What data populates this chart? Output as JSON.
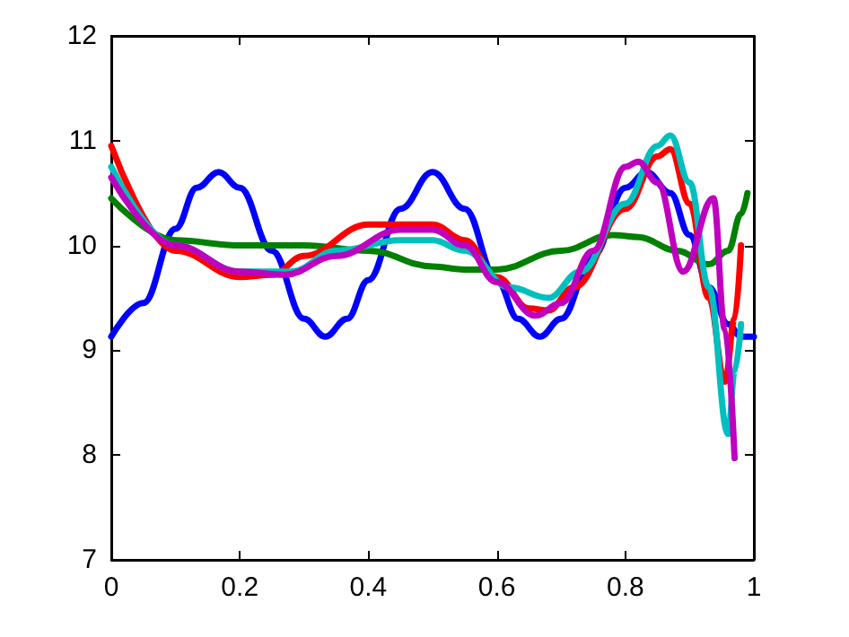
{
  "chart_data": {
    "type": "line",
    "xlim": [
      0,
      1
    ],
    "ylim": [
      7,
      12
    ],
    "xticks": [
      0,
      0.2,
      0.4,
      0.6,
      0.8,
      1
    ],
    "yticks": [
      7,
      8,
      9,
      10,
      11,
      12
    ],
    "grid": false,
    "marker": "none",
    "line_style": "solid",
    "series": [
      {
        "color": "#0000ff",
        "x": [
          0,
          0.05,
          0.1,
          0.133,
          0.167,
          0.2,
          0.25,
          0.3,
          0.333,
          0.367,
          0.4,
          0.45,
          0.5,
          0.55,
          0.6,
          0.633,
          0.667,
          0.7,
          0.75,
          0.8,
          0.833,
          0.87,
          0.9,
          0.93,
          0.96,
          0.98,
          1
        ],
        "values": [
          9.13,
          9.45,
          10.16,
          10.55,
          10.7,
          10.55,
          9.95,
          9.3,
          9.13,
          9.3,
          9.67,
          10.35,
          10.7,
          10.35,
          9.67,
          9.3,
          9.13,
          9.3,
          9.9,
          10.55,
          10.7,
          10.5,
          10.1,
          9.6,
          9.25,
          9.13,
          9.13
        ]
      },
      {
        "color": "#008000",
        "x": [
          0,
          0.1,
          0.2,
          0.3,
          0.4,
          0.5,
          0.55,
          0.6,
          0.7,
          0.78,
          0.82,
          0.88,
          0.93,
          0.96,
          0.98,
          0.99
        ],
        "values": [
          10.45,
          10.05,
          10.0,
          10.0,
          9.95,
          9.8,
          9.77,
          9.77,
          9.95,
          10.1,
          10.08,
          9.95,
          9.82,
          9.95,
          10.3,
          10.5
        ]
      },
      {
        "color": "#ff0000",
        "x": [
          0,
          0.1,
          0.2,
          0.25,
          0.3,
          0.4,
          0.5,
          0.55,
          0.6,
          0.65,
          0.68,
          0.72,
          0.8,
          0.85,
          0.87,
          0.9,
          0.93,
          0.955,
          0.97,
          0.98
        ],
        "values": [
          10.95,
          9.95,
          9.7,
          9.72,
          9.9,
          10.2,
          10.2,
          10.05,
          9.7,
          9.4,
          9.38,
          9.6,
          10.35,
          10.85,
          10.92,
          10.4,
          9.5,
          8.7,
          9.3,
          10.0
        ]
      },
      {
        "color": "#00bfbf",
        "x": [
          0,
          0.1,
          0.2,
          0.28,
          0.35,
          0.45,
          0.5,
          0.55,
          0.62,
          0.68,
          0.73,
          0.8,
          0.85,
          0.87,
          0.9,
          0.93,
          0.96,
          0.97,
          0.98
        ],
        "values": [
          10.75,
          10.0,
          9.75,
          9.75,
          9.95,
          10.05,
          10.05,
          9.95,
          9.6,
          9.5,
          9.75,
          10.4,
          10.95,
          11.05,
          10.6,
          9.6,
          8.2,
          8.8,
          9.25
        ]
      },
      {
        "color": "#bf00bf",
        "x": [
          0,
          0.1,
          0.2,
          0.27,
          0.35,
          0.45,
          0.5,
          0.55,
          0.6,
          0.66,
          0.7,
          0.75,
          0.8,
          0.82,
          0.85,
          0.89,
          0.937,
          0.955,
          0.97
        ],
        "values": [
          10.65,
          10.0,
          9.75,
          9.72,
          9.9,
          10.15,
          10.15,
          10.0,
          9.65,
          9.33,
          9.45,
          9.95,
          10.75,
          10.8,
          10.6,
          9.75,
          10.45,
          9.2,
          7.97
        ]
      }
    ]
  }
}
